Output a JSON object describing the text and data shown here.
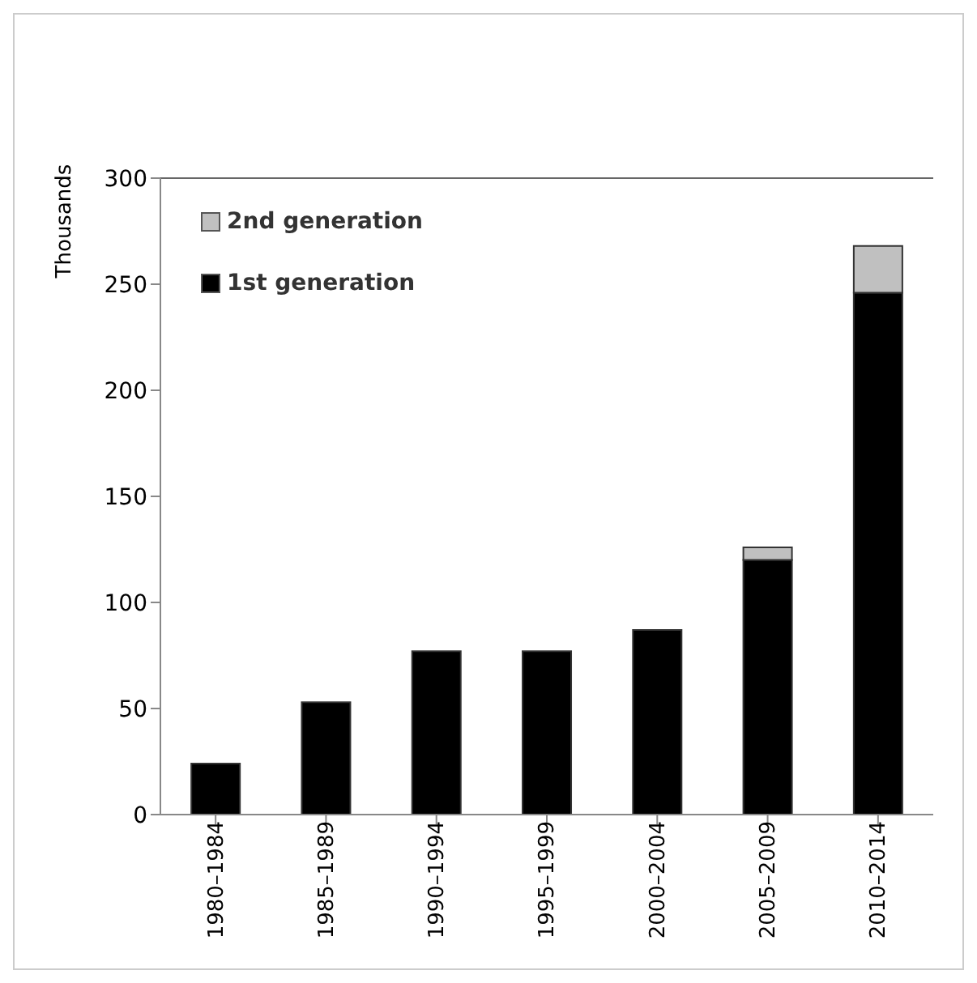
{
  "chart_data": {
    "type": "bar",
    "stacked": true,
    "ylabel": "Thousands",
    "categories": [
      "1980–1984",
      "1985–1989",
      "1990–1994",
      "1995–1999",
      "2000–2004",
      "2005–2009",
      "2010–2014"
    ],
    "series": [
      {
        "name": "1st generation",
        "color": "#000000",
        "values": [
          24,
          53,
          77,
          77,
          87,
          120,
          246
        ]
      },
      {
        "name": "2nd generation",
        "color": "#c0c0c0",
        "values": [
          0,
          0,
          0,
          0,
          0,
          6,
          22
        ]
      }
    ],
    "ylim": [
      0,
      300
    ],
    "yticks": [
      0,
      50,
      100,
      150,
      200,
      250,
      300
    ],
    "legend": "top left"
  }
}
